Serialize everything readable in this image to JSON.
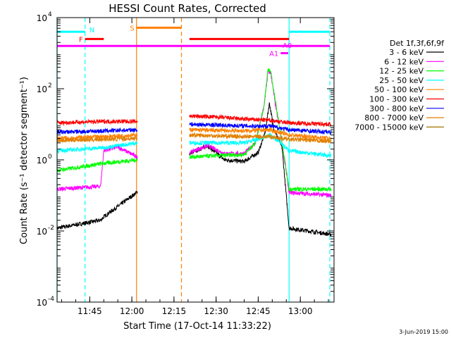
{
  "chart_data": {
    "type": "line",
    "title": "HESSI Count Rates, Corrected",
    "xlabel": "Start Time (17-Oct-14 11:33:22)",
    "ylabel": "Count Rate (s⁻¹ detector segment⁻¹)",
    "y_scale": "log",
    "ylim": [
      0.0001,
      10000
    ],
    "xlim": [
      "11:33:22",
      "13:12:00"
    ],
    "x_ticks": [
      "11:45",
      "12:00",
      "12:15",
      "12:30",
      "12:45",
      "13:00"
    ],
    "y_ticks": [
      {
        "value": 0.0001,
        "base": "10",
        "exp": "-4"
      },
      {
        "value": 0.01,
        "base": "10",
        "exp": "-2"
      },
      {
        "value": 1,
        "base": "10",
        "exp": "0"
      },
      {
        "value": 100,
        "base": "10",
        "exp": "2"
      },
      {
        "value": 10000,
        "base": "10",
        "exp": "4"
      }
    ],
    "legend_title": "Det 1f,3f,6f,9f",
    "legend_position": "top-right",
    "series": [
      {
        "name": "3 - 6 keV",
        "color": "#000000",
        "x": [
          "11:33:22",
          "11:48:50",
          "11:50:00",
          "12:20:30",
          "12:27:00",
          "12:33:00",
          "12:40:00",
          "12:45:00",
          "12:47:30",
          "12:49:00",
          "12:50:30",
          "12:53:30",
          "12:56:00",
          "13:11:00"
        ],
        "values": [
          0.012,
          0.02,
          0.025,
          1.5,
          2.5,
          1.0,
          0.9,
          1.6,
          6,
          40,
          8,
          2.2,
          0.012,
          0.008
        ]
      },
      {
        "name": "6 - 12 keV",
        "color": "#ff00ff",
        "x": [
          "11:33:22",
          "11:48:50",
          "11:50:00",
          "11:55:00",
          "12:02:00",
          "12:20:30",
          "12:27:00",
          "12:33:00",
          "12:40:00",
          "12:44:00",
          "12:47:00",
          "12:48:30",
          "12:49:30",
          "12:51:00",
          "12:53:30",
          "12:56:00",
          "13:11:00"
        ],
        "values": [
          0.15,
          0.18,
          1.8,
          2.3,
          1.2,
          1.6,
          2.5,
          1.5,
          1.5,
          3,
          30,
          300,
          280,
          40,
          3,
          0.12,
          0.1
        ]
      },
      {
        "name": "12 - 25 keV",
        "color": "#00ff00",
        "x": [
          "11:33:22",
          "11:50:00",
          "12:02:00",
          "12:20:30",
          "12:30:00",
          "12:40:00",
          "12:44:00",
          "12:47:00",
          "12:48:30",
          "12:49:30",
          "12:51:00",
          "12:53:30",
          "12:56:00",
          "13:11:00"
        ],
        "values": [
          0.5,
          0.8,
          1.0,
          1.2,
          1.3,
          1.4,
          3,
          30,
          350,
          300,
          50,
          3,
          0.15,
          0.15
        ]
      },
      {
        "name": "25 - 50 keV",
        "color": "#00ffff",
        "x": [
          "11:33:22",
          "11:50:00",
          "12:02:00",
          "12:20:30",
          "12:40:00",
          "12:46:00",
          "12:49:00",
          "12:52:00",
          "12:56:00",
          "13:11:00"
        ],
        "values": [
          1.8,
          2.2,
          3.0,
          3.0,
          3.0,
          4.0,
          5.0,
          3.5,
          1.8,
          1.3
        ]
      },
      {
        "name": "50 - 100 keV",
        "color": "#ff8000",
        "x": [
          "11:33:22",
          "11:50:00",
          "12:02:00",
          "12:20:30",
          "12:40:00",
          "12:49:00",
          "12:56:00",
          "13:11:00"
        ],
        "values": [
          4.0,
          4.5,
          5.0,
          7.0,
          6.5,
          7.0,
          5.0,
          4.0
        ]
      },
      {
        "name": "100 - 300 keV",
        "color": "#ff0000",
        "x": [
          "11:33:22",
          "11:50:00",
          "12:02:00",
          "12:20:30",
          "12:30:00",
          "12:40:00",
          "12:49:00",
          "12:56:00",
          "13:11:00"
        ],
        "values": [
          11,
          12,
          12,
          17,
          16,
          14,
          13,
          11,
          10
        ]
      },
      {
        "name": "300 - 800 keV",
        "color": "#0000ff",
        "x": [
          "11:33:22",
          "11:50:00",
          "12:02:00",
          "12:20:30",
          "12:40:00",
          "12:49:00",
          "12:56:00",
          "13:11:00"
        ],
        "values": [
          6.0,
          6.5,
          7.0,
          10,
          9,
          9,
          7,
          6
        ]
      },
      {
        "name": "800 - 7000 keV",
        "color": "#e08000",
        "x": [
          "11:33:22",
          "11:50:00",
          "12:02:00",
          "12:20:30",
          "12:40:00",
          "12:49:00",
          "12:56:00",
          "13:11:00"
        ],
        "values": [
          3.5,
          3.8,
          4.0,
          5.0,
          4.5,
          4.5,
          3.8,
          3.3
        ]
      },
      {
        "name": "7000 - 15000 keV",
        "color": "#a07000",
        "x": [],
        "values": []
      }
    ],
    "vertical_lines": [
      {
        "time": "11:33:22",
        "color": "#00ffff",
        "style": "solid"
      },
      {
        "time": "11:43:20",
        "color": "#00ffff",
        "style": "dashed"
      },
      {
        "time": "12:01:40",
        "color": "#ff8000",
        "style": "solid"
      },
      {
        "time": "12:17:40",
        "color": "#ff8000",
        "style": "dashed"
      },
      {
        "time": "12:56:00",
        "color": "#00ffff",
        "style": "solid"
      },
      {
        "time": "13:10:30",
        "color": "#00ffff",
        "style": "dashed"
      }
    ],
    "flag_bars": [
      {
        "label": "N",
        "color": "#00ffff",
        "segments": [
          [
            "11:33:22",
            "11:43:20"
          ],
          [
            "12:56:00",
            "13:10:30"
          ]
        ],
        "level": 4000
      },
      {
        "label": "S",
        "color": "#ff8000",
        "segments": [
          [
            "12:01:40",
            "12:17:40"
          ]
        ],
        "level": 5200
      },
      {
        "label": "F",
        "color": "#ff0000",
        "segments": [
          [
            "11:43:20",
            "11:50:00"
          ],
          [
            "12:20:30",
            "12:56:00"
          ]
        ],
        "level": 2500
      },
      {
        "label": "",
        "color": "#ff00ff",
        "segments": [
          [
            "11:33:22",
            "13:10:30"
          ]
        ],
        "level": 1600
      },
      {
        "label": "A0",
        "color": "#ff00ff",
        "segments": [],
        "level": 1600
      },
      {
        "label": "A1",
        "color": "#ff00ff",
        "segments": [
          [
            "12:53:00",
            "12:55:40"
          ]
        ],
        "level": 1000
      }
    ],
    "footer_date": "3-Jun-2019 15:00"
  }
}
